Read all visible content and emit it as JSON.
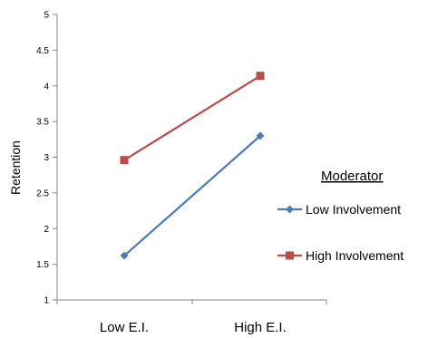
{
  "chart_data": {
    "type": "line",
    "categories": [
      "Low E.I.",
      "High E.I."
    ],
    "ylabel": "Retention",
    "xlabel": "",
    "ylim": [
      1,
      5
    ],
    "yticks": [
      "1",
      "1.5",
      "2",
      "2.5",
      "3",
      "3.5",
      "4",
      "4.5",
      "5"
    ],
    "grid": false,
    "legend": {
      "title": "Moderator",
      "placement": "right"
    },
    "series": [
      {
        "name": "Low Involvement",
        "values": [
          1.62,
          3.3
        ],
        "color": "#4a7ebb",
        "marker": "diamond"
      },
      {
        "name": "High Involvement",
        "values": [
          2.96,
          4.14
        ],
        "color": "#be4b48",
        "marker": "square"
      }
    ]
  }
}
